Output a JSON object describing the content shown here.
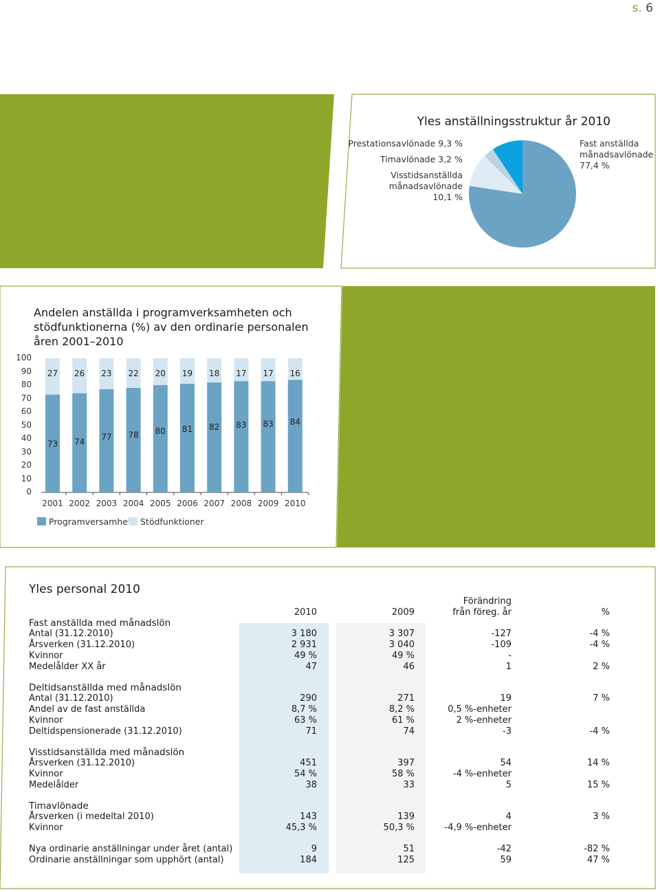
{
  "page": {
    "prefix": "s.",
    "number": "6"
  },
  "pie": {
    "title": "Yles anställningsstruktur år 2010",
    "slices": [
      {
        "name": "Fast anställda månadsavlönade",
        "value": 77.4,
        "color": "#6aa3c4"
      },
      {
        "name": "Visstidsanställda månadsavlönade",
        "value": 10.1,
        "color": "#dfecf4"
      },
      {
        "name": "Timavlönade",
        "value": 3.2,
        "color": "#b8d3e6"
      },
      {
        "name": "Prestationsavlönade",
        "value": 9.3,
        "color": "#0aa2e0"
      }
    ],
    "labels": {
      "prestation": "Prestationsavlönade 9,3 %",
      "tim": "Timavlönade 3,2 %",
      "visstid_1": "Visstidsanställda",
      "visstid_2": "månadsavlönade",
      "visstid_3": "10,1 %",
      "fast_1": "Fast anställda",
      "fast_2": "månadsavlönade",
      "fast_3": "77,4 %"
    }
  },
  "bar": {
    "title_1": "Andelen anställda i programverksamheten och",
    "title_2": "stödfunktionerna (%) av den ordinarie personalen",
    "title_3": "åren 2001–2010",
    "legend": {
      "prog": "Programversamhet",
      "stod": "Stödfunktioner"
    },
    "colors": {
      "prog": "#6aa3c4",
      "stod": "#d3e5f0"
    }
  },
  "chart_data": {
    "type": "bar",
    "stacked": true,
    "categories": [
      "2001",
      "2002",
      "2003",
      "2004",
      "2005",
      "2006",
      "2007",
      "2008",
      "2009",
      "2010"
    ],
    "series": [
      {
        "name": "Programversamhet",
        "values": [
          73,
          74,
          77,
          78,
          80,
          81,
          82,
          83,
          83,
          84
        ]
      },
      {
        "name": "Stödfunktioner",
        "values": [
          27,
          26,
          23,
          22,
          20,
          19,
          18,
          17,
          17,
          16
        ]
      }
    ],
    "yticks": [
      "0",
      "10",
      "20",
      "30",
      "40",
      "50",
      "60",
      "70",
      "80",
      "90",
      "100"
    ],
    "ylim": [
      0,
      100
    ]
  },
  "table": {
    "title": "Yles personal 2010",
    "headers": {
      "y2010": "2010",
      "y2009": "2009",
      "change_1": "Förändring",
      "change_2": "från föreg. år",
      "pct": "%"
    },
    "sections": [
      {
        "title": "Fast anställda med månadslön",
        "rows": [
          {
            "label": "Antal (31.12.2010)",
            "v2010": "3 180",
            "v2009": "3 307",
            "chg": "-127",
            "pct": "-4 %"
          },
          {
            "label": "Årsverken (31.12.2010)",
            "v2010": "2 931",
            "v2009": "3 040",
            "chg": "-109",
            "pct": "-4 %"
          },
          {
            "label": "Kvinnor",
            "v2010": "49 %",
            "v2009": "49 %",
            "chg": "-",
            "pct": ""
          },
          {
            "label": "Medelålder XX år",
            "v2010": "47",
            "v2009": "46",
            "chg": "1",
            "pct": "2 %"
          }
        ]
      },
      {
        "title": "Deltidsanställda med månadslön",
        "rows": [
          {
            "label": "Antal (31.12.2010)",
            "v2010": "290",
            "v2009": "271",
            "chg": "19",
            "pct": "7 %"
          },
          {
            "label": "Andel av de fast anställda",
            "v2010": "8,7 %",
            "v2009": "8,2 %",
            "chg": "0,5 %-enheter",
            "pct": ""
          },
          {
            "label": "Kvinnor",
            "v2010": "63 %",
            "v2009": "61 %",
            "chg": "2 %-enheter",
            "pct": ""
          },
          {
            "label": "Deltidspensionerade (31.12.2010)",
            "v2010": "71",
            "v2009": "74",
            "chg": "-3",
            "pct": "-4 %"
          }
        ]
      },
      {
        "title": "Visstidsanställda med månadslön",
        "rows": [
          {
            "label": "Årsverken (31.12.2010)",
            "v2010": "451",
            "v2009": "397",
            "chg": "54",
            "pct": "14 %"
          },
          {
            "label": "Kvinnor",
            "v2010": "54 %",
            "v2009": "58 %",
            "chg": "-4 %-enheter",
            "pct": ""
          },
          {
            "label": "Medelålder",
            "v2010": "38",
            "v2009": "33",
            "chg": "5",
            "pct": "15 %"
          }
        ]
      },
      {
        "title": "Timavlönade",
        "rows": [
          {
            "label": "Årsverken (i medeltal 2010)",
            "v2010": "143",
            "v2009": "139",
            "chg": "4",
            "pct": "3 %"
          },
          {
            "label": "Kvinnor",
            "v2010": "45,3 %",
            "v2009": "50,3 %",
            "chg": "-4,9 %-enheter",
            "pct": ""
          }
        ]
      },
      {
        "title": "",
        "rows": [
          {
            "label": "Nya ordinarie anställningar under året (antal)",
            "v2010": "9",
            "v2009": "51",
            "chg": "-42",
            "pct": "-82 %"
          },
          {
            "label": "Ordinarie anställningar som upphört (antal)",
            "v2010": "184",
            "v2009": "125",
            "chg": "59",
            "pct": "47 %"
          }
        ]
      }
    ]
  }
}
